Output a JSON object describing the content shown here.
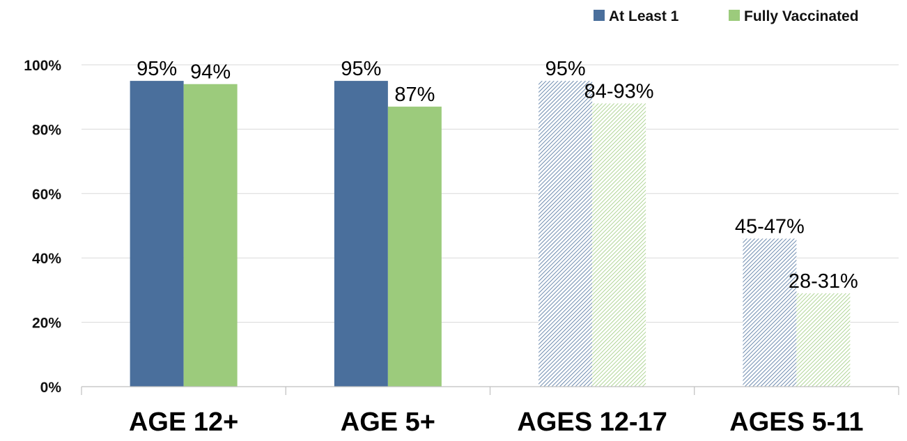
{
  "chart_data": {
    "type": "bar",
    "categories": [
      "AGE 12+",
      "AGE 5+",
      "AGES 12-17",
      "AGES 5-11"
    ],
    "series": [
      {
        "name": "At Least 1",
        "color": "#4a6f9c",
        "values": [
          95,
          95,
          95,
          46
        ],
        "labels": [
          "95%",
          "95%",
          "95%",
          "45-47%"
        ],
        "hatched": [
          false,
          false,
          true,
          true
        ]
      },
      {
        "name": "Fully Vaccinated",
        "color": "#9ccb7c",
        "values": [
          94,
          87,
          88,
          29
        ],
        "labels": [
          "94%",
          "87%",
          "84-93%",
          "28-31%"
        ],
        "hatched": [
          false,
          false,
          true,
          true
        ]
      }
    ],
    "ylim": [
      0,
      100
    ],
    "yticks": [
      0,
      20,
      40,
      60,
      80,
      100
    ],
    "ytick_labels": [
      "0%",
      "20%",
      "40%",
      "60%",
      "80%",
      "100%"
    ],
    "grid": true,
    "legend_position": "top-right",
    "title": "",
    "xlabel": "",
    "ylabel": ""
  }
}
